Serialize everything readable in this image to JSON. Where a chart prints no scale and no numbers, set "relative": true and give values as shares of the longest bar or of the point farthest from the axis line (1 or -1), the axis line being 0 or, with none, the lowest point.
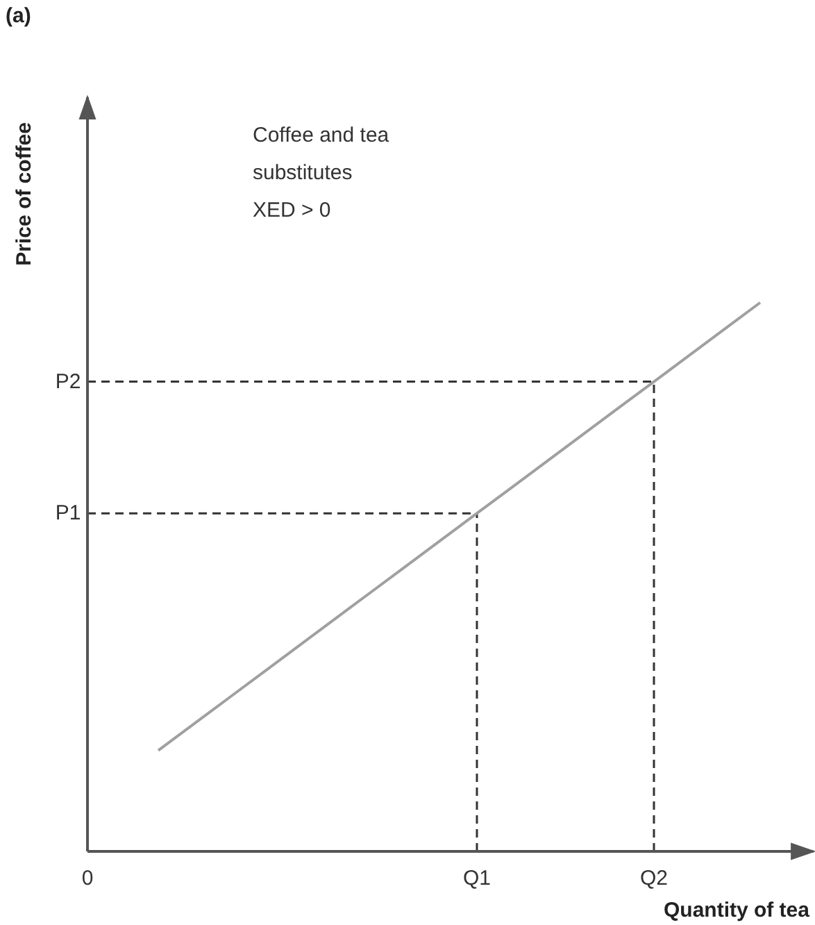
{
  "chart_data": {
    "type": "line",
    "title": "(a)",
    "xlabel": "Quantity of tea",
    "ylabel": "Price of coffee",
    "relative": true,
    "annotations": [
      "Coffee and tea\nsubstitutes\nXED > 0"
    ],
    "categories": [
      "0",
      null,
      null,
      null,
      null,
      null,
      null,
      null,
      null,
      null,
      null,
      "Q1",
      null,
      null,
      null,
      null,
      "Q2",
      null,
      null,
      null
    ],
    "series": [
      {
        "color": "#a0a0a0",
        "values": [
          null,
          null,
          0.184,
          0.232,
          0.28,
          0.328,
          0.376,
          0.424,
          0.472,
          0.52,
          0.568,
          0.616,
          0.664,
          0.712,
          0.76,
          0.808,
          0.856,
          0.904,
          0.952,
          1
        ]
      }
    ],
    "ref_lines": [
      {
        "axis": "y",
        "value": 0.616,
        "label": "P1",
        "color": "#333333",
        "line_style": "dashed"
      },
      {
        "axis": "y",
        "value": 0.856,
        "label": "P2",
        "color": "#333333",
        "line_style": "dashed"
      },
      {
        "axis": "x",
        "value": "Q1",
        "color": "#333333",
        "line_style": "dashed"
      },
      {
        "axis": "x",
        "value": "Q2",
        "color": "#333333",
        "line_style": "dashed"
      }
    ],
    "marker": "none",
    "line_style": "solid"
  }
}
